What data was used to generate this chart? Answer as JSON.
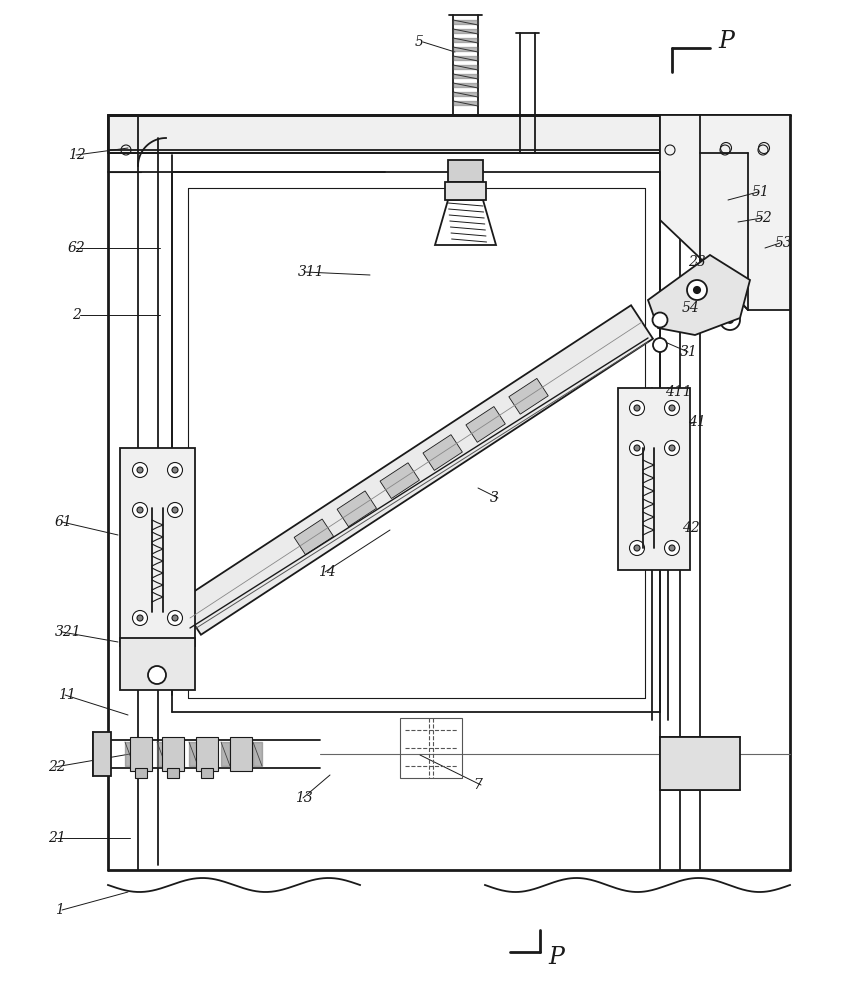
{
  "bg_color": "#ffffff",
  "line_color": "#1a1a1a",
  "lw_main": 1.3,
  "lw_thin": 0.8,
  "lw_thick": 2.0,
  "labels": [
    [
      "1",
      55,
      910
    ],
    [
      "2",
      72,
      315
    ],
    [
      "3",
      490,
      498
    ],
    [
      "5",
      415,
      42
    ],
    [
      "7",
      473,
      785
    ],
    [
      "11",
      58,
      695
    ],
    [
      "12",
      68,
      155
    ],
    [
      "13",
      295,
      798
    ],
    [
      "14",
      318,
      572
    ],
    [
      "21",
      48,
      838
    ],
    [
      "22",
      48,
      767
    ],
    [
      "23",
      688,
      262
    ],
    [
      "31",
      680,
      352
    ],
    [
      "41",
      688,
      422
    ],
    [
      "411",
      665,
      392
    ],
    [
      "42",
      682,
      528
    ],
    [
      "51",
      752,
      192
    ],
    [
      "52",
      755,
      218
    ],
    [
      "53",
      775,
      243
    ],
    [
      "54",
      682,
      308
    ],
    [
      "61",
      55,
      522
    ],
    [
      "62",
      68,
      248
    ],
    [
      "311",
      298,
      272
    ],
    [
      "321",
      55,
      632
    ]
  ]
}
